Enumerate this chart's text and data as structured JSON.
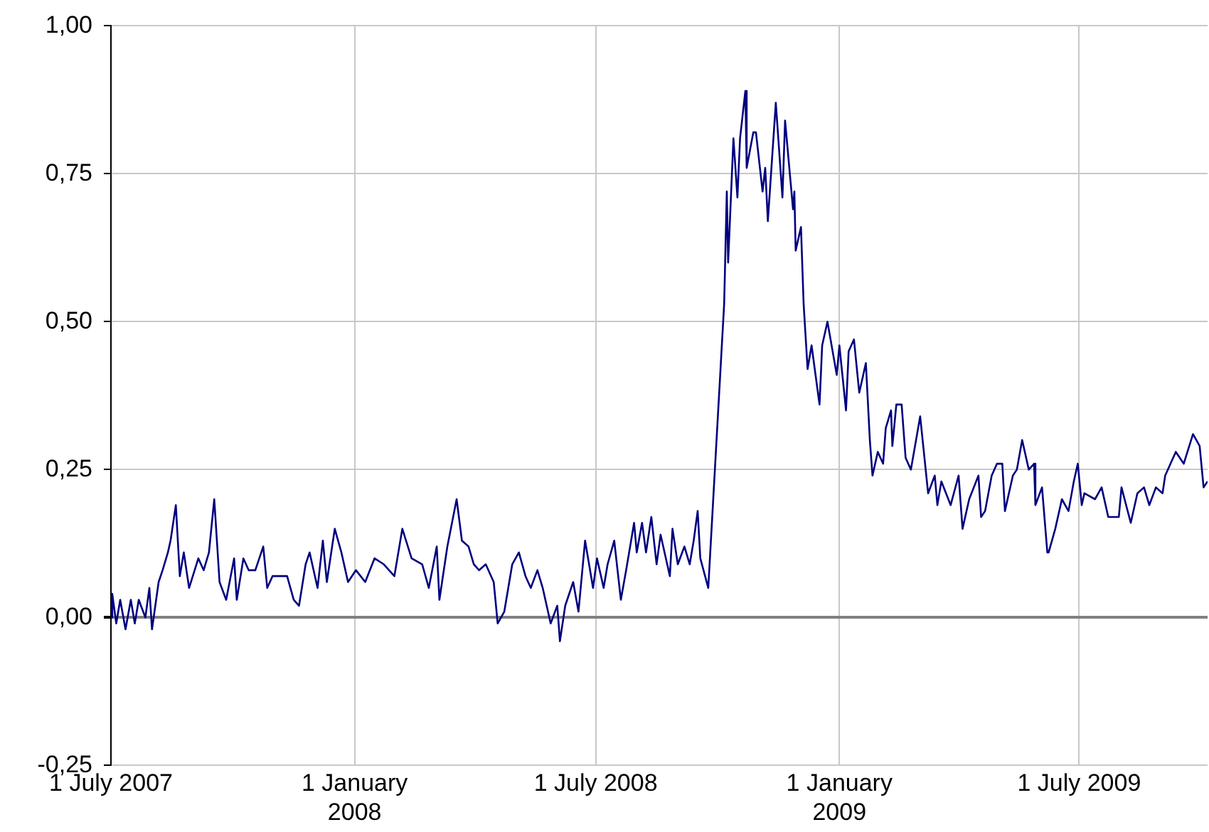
{
  "chart_data": {
    "type": "line",
    "xlim": [
      "2007-07-01",
      "2009-10-06"
    ],
    "ylim": [
      -0.25,
      1
    ],
    "yticks": [
      {
        "value": -0.25,
        "label": "-0,25"
      },
      {
        "value": 0,
        "label": "0,00"
      },
      {
        "value": 0.25,
        "label": "0,25"
      },
      {
        "value": 0.5,
        "label": "0,50"
      },
      {
        "value": 0.75,
        "label": "0,75"
      },
      {
        "value": 1,
        "label": "1,00"
      }
    ],
    "xticks": [
      {
        "value": "2007-07-01",
        "label": "1 July 2007"
      },
      {
        "value": "2008-01-01",
        "label": "1 January 2008"
      },
      {
        "value": "2008-07-01",
        "label": "1 July 2008"
      },
      {
        "value": "2009-01-01",
        "label": "1 January 2009"
      },
      {
        "value": "2009-07-01",
        "label": "1 July 2009"
      }
    ],
    "grid": true,
    "legend": false,
    "marker": "none",
    "line_style": "solid",
    "x": [
      "2007-07-01",
      "2007-07-02",
      "2007-07-05",
      "2007-07-08",
      "2007-07-12",
      "2007-07-16",
      "2007-07-19",
      "2007-07-22",
      "2007-07-27",
      "2007-07-30",
      "2007-08-01",
      "2007-08-06",
      "2007-08-09",
      "2007-08-13",
      "2007-08-15",
      "2007-08-19",
      "2007-08-22",
      "2007-08-25",
      "2007-08-29",
      "2007-09-05",
      "2007-09-09",
      "2007-09-13",
      "2007-09-17",
      "2007-09-21",
      "2007-09-26",
      "2007-10-02",
      "2007-10-04",
      "2007-10-09",
      "2007-10-13",
      "2007-10-18",
      "2007-10-24",
      "2007-10-27",
      "2007-10-31",
      "2007-11-06",
      "2007-11-11",
      "2007-11-16",
      "2007-11-20",
      "2007-11-25",
      "2007-11-28",
      "2007-12-04",
      "2007-12-08",
      "2007-12-11",
      "2007-12-17",
      "2007-12-22",
      "2007-12-27",
      "2008-01-02",
      "2008-01-09",
      "2008-01-16",
      "2008-01-23",
      "2008-01-31",
      "2008-02-06",
      "2008-02-13",
      "2008-02-21",
      "2008-02-26",
      "2008-03-03",
      "2008-03-05",
      "2008-03-11",
      "2008-03-18",
      "2008-03-22",
      "2008-03-27",
      "2008-03-31",
      "2008-04-04",
      "2008-04-09",
      "2008-04-15",
      "2008-04-18",
      "2008-04-23",
      "2008-04-29",
      "2008-05-04",
      "2008-05-09",
      "2008-05-13",
      "2008-05-18",
      "2008-05-22",
      "2008-05-28",
      "2008-06-02",
      "2008-06-04",
      "2008-06-08",
      "2008-06-14",
      "2008-06-18",
      "2008-06-23",
      "2008-06-29",
      "2008-07-02",
      "2008-07-07",
      "2008-07-10",
      "2008-07-15",
      "2008-07-20",
      "2008-07-24",
      "2008-07-30",
      "2008-08-01",
      "2008-08-05",
      "2008-08-08",
      "2008-08-12",
      "2008-08-16",
      "2008-08-19",
      "2008-08-26",
      "2008-08-28",
      "2008-09-01",
      "2008-09-06",
      "2008-09-10",
      "2008-09-13",
      "2008-09-16",
      "2008-09-18",
      "2008-09-24",
      "2008-09-29",
      "2008-10-04",
      "2008-10-06",
      "2008-10-08",
      "2008-10-09",
      "2008-10-13",
      "2008-10-16",
      "2008-10-18",
      "2008-10-22",
      "2008-10-23",
      "2008-10-28",
      "2008-10-30",
      "2008-11-04",
      "2008-11-06",
      "2008-11-08",
      "2008-11-14",
      "2008-11-19",
      "2008-11-21",
      "2008-11-27",
      "2008-11-28",
      "2008-11-29",
      "2008-12-03",
      "2008-12-05",
      "2008-12-08",
      "2008-12-11",
      "2008-12-17",
      "2008-12-19",
      "2008-12-23",
      "2008-12-30",
      "2009-01-01",
      "2009-01-06",
      "2009-01-08",
      "2009-01-12",
      "2009-01-16",
      "2009-01-21",
      "2009-01-24",
      "2009-01-26",
      "2009-01-30",
      "2009-02-03",
      "2009-02-05",
      "2009-02-09",
      "2009-02-10",
      "2009-02-13",
      "2009-02-17",
      "2009-02-20",
      "2009-02-24",
      "2009-03-03",
      "2009-03-09",
      "2009-03-14",
      "2009-03-16",
      "2009-03-19",
      "2009-03-26",
      "2009-04-01",
      "2009-04-04",
      "2009-04-09",
      "2009-04-16",
      "2009-04-18",
      "2009-04-21",
      "2009-04-26",
      "2009-04-30",
      "2009-05-04",
      "2009-05-06",
      "2009-05-12",
      "2009-05-15",
      "2009-05-19",
      "2009-05-24",
      "2009-05-28",
      "2009-05-29",
      "2009-06-03",
      "2009-06-07",
      "2009-06-08",
      "2009-06-13",
      "2009-06-18",
      "2009-06-23",
      "2009-06-27",
      "2009-06-30",
      "2009-07-03",
      "2009-07-05",
      "2009-07-13",
      "2009-07-18",
      "2009-07-23",
      "2009-07-31",
      "2009-08-02",
      "2009-08-09",
      "2009-08-14",
      "2009-08-19",
      "2009-08-23",
      "2009-08-28",
      "2009-09-02",
      "2009-09-04",
      "2009-09-12",
      "2009-09-18",
      "2009-09-25",
      "2009-09-30",
      "2009-10-03",
      "2009-10-06"
    ],
    "series": [
      {
        "color": "#000080",
        "values": [
          0.0,
          0.04,
          -0.01,
          0.03,
          -0.02,
          0.03,
          -0.01,
          0.03,
          0.0,
          0.05,
          -0.02,
          0.06,
          0.08,
          0.11,
          0.13,
          0.19,
          0.07,
          0.11,
          0.05,
          0.1,
          0.08,
          0.11,
          0.2,
          0.06,
          0.03,
          0.1,
          0.03,
          0.1,
          0.08,
          0.08,
          0.12,
          0.05,
          0.07,
          0.07,
          0.07,
          0.03,
          0.02,
          0.09,
          0.11,
          0.05,
          0.13,
          0.06,
          0.15,
          0.11,
          0.06,
          0.08,
          0.06,
          0.1,
          0.09,
          0.07,
          0.15,
          0.1,
          0.09,
          0.05,
          0.12,
          0.03,
          0.12,
          0.2,
          0.13,
          0.12,
          0.09,
          0.08,
          0.09,
          0.06,
          -0.01,
          0.01,
          0.09,
          0.11,
          0.07,
          0.05,
          0.08,
          0.05,
          -0.01,
          0.02,
          -0.04,
          0.02,
          0.06,
          0.01,
          0.13,
          0.05,
          0.1,
          0.05,
          0.09,
          0.13,
          0.03,
          0.08,
          0.16,
          0.11,
          0.16,
          0.11,
          0.17,
          0.09,
          0.14,
          0.07,
          0.15,
          0.09,
          0.12,
          0.09,
          0.13,
          0.18,
          0.1,
          0.05,
          0.25,
          0.45,
          0.53,
          0.72,
          0.6,
          0.81,
          0.71,
          0.81,
          0.89,
          0.76,
          0.82,
          0.82,
          0.72,
          0.76,
          0.67,
          0.87,
          0.71,
          0.84,
          0.69,
          0.72,
          0.62,
          0.66,
          0.53,
          0.42,
          0.46,
          0.36,
          0.46,
          0.5,
          0.41,
          0.46,
          0.35,
          0.45,
          0.47,
          0.38,
          0.43,
          0.3,
          0.24,
          0.28,
          0.26,
          0.32,
          0.35,
          0.29,
          0.36,
          0.36,
          0.27,
          0.25,
          0.34,
          0.21,
          0.24,
          0.19,
          0.23,
          0.19,
          0.24,
          0.15,
          0.2,
          0.24,
          0.17,
          0.18,
          0.24,
          0.26,
          0.26,
          0.18,
          0.24,
          0.25,
          0.3,
          0.25,
          0.26,
          0.19,
          0.22,
          0.11,
          0.11,
          0.15,
          0.2,
          0.18,
          0.23,
          0.26,
          0.19,
          0.21,
          0.2,
          0.22,
          0.17,
          0.17,
          0.22,
          0.16,
          0.21,
          0.22,
          0.19,
          0.22,
          0.21,
          0.24,
          0.28,
          0.26,
          0.31,
          0.29,
          0.22,
          0.23
        ]
      }
    ]
  }
}
